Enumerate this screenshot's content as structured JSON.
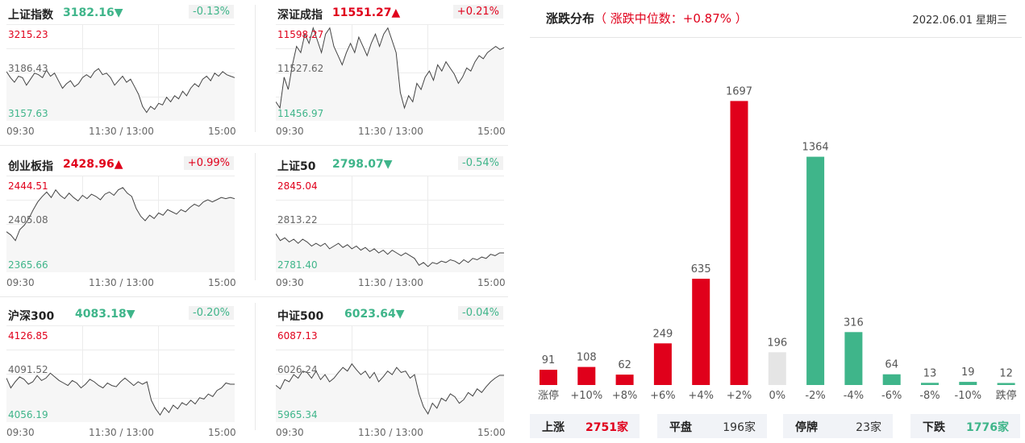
{
  "indices": [
    {
      "name": "上证指数",
      "value": "3182.16",
      "arrow": "▼",
      "change": "-0.13%",
      "trend": "down",
      "ymax": "3215.23",
      "ymid": "3186.43",
      "ymin": "3157.63",
      "series": [
        3187.0,
        3183.0,
        3180.0,
        3184.0,
        3183.0,
        3178.0,
        3182.0,
        3186.0,
        3185.0,
        3183.0,
        3188.0,
        3184.0,
        3186.0,
        3181.0,
        3176.0,
        3179.0,
        3181.0,
        3177.0,
        3179.0,
        3183.0,
        3185.0,
        3183.0,
        3187.0,
        3189.0,
        3185.0,
        3186.0,
        3183.0,
        3178.0,
        3181.0,
        3184.0,
        3180.0,
        3182.0,
        3177.0,
        3172.0,
        3164.0,
        3160.0,
        3164.0,
        3162.0,
        3166.0,
        3165.0,
        3170.0,
        3167.0,
        3171.0,
        3169.0,
        3174.0,
        3171.0,
        3176.0,
        3179.0,
        3177.0,
        3182.0,
        3184.0,
        3181.0,
        3186.0,
        3184.0,
        3187.0,
        3185.0,
        3184.0,
        3183.0
      ]
    },
    {
      "name": "深证成指",
      "value": "11551.27",
      "arrow": "▲",
      "change": "+0.21%",
      "trend": "up",
      "ymax": "11598.27",
      "ymid": "11527.62",
      "ymin": "11456.97",
      "series": [
        11480,
        11470,
        11520,
        11500,
        11540,
        11570,
        11560,
        11590,
        11575,
        11600,
        11580,
        11560,
        11590,
        11600,
        11570,
        11555,
        11540,
        11560,
        11575,
        11560,
        11585,
        11570,
        11555,
        11575,
        11590,
        11570,
        11590,
        11600,
        11580,
        11560,
        11495,
        11470,
        11490,
        11480,
        11510,
        11500,
        11520,
        11530,
        11515,
        11540,
        11530,
        11545,
        11535,
        11525,
        11510,
        11520,
        11535,
        11530,
        11545,
        11555,
        11550,
        11560,
        11565,
        11570,
        11565,
        11568
      ]
    },
    {
      "name": "创业板指",
      "value": "2428.96",
      "arrow": "▲",
      "change": "+0.99%",
      "trend": "up",
      "ymax": "2444.51",
      "ymid": "2405.08",
      "ymin": "2365.66",
      "series": [
        2398,
        2395,
        2390,
        2400,
        2404,
        2410,
        2418,
        2425,
        2430,
        2434,
        2429,
        2436,
        2431,
        2428,
        2433,
        2429,
        2426,
        2431,
        2428,
        2432,
        2430,
        2427,
        2432,
        2434,
        2431,
        2436,
        2438,
        2433,
        2430,
        2419,
        2412,
        2408,
        2413,
        2410,
        2415,
        2413,
        2418,
        2416,
        2414,
        2418,
        2416,
        2420,
        2423,
        2421,
        2425,
        2427,
        2425,
        2427,
        2429,
        2428,
        2429,
        2428
      ]
    },
    {
      "name": "上证50",
      "value": "2798.07",
      "arrow": "▼",
      "change": "-0.54%",
      "trend": "down",
      "ymax": "2845.04",
      "ymid": "2813.22",
      "ymin": "2781.40",
      "series": [
        2806,
        2801,
        2803,
        2800,
        2802,
        2799,
        2802,
        2800,
        2797,
        2799,
        2797,
        2799,
        2795,
        2797,
        2799,
        2796,
        2798,
        2795,
        2797,
        2794,
        2796,
        2793,
        2795,
        2792,
        2794,
        2791,
        2794,
        2792,
        2790,
        2792,
        2790,
        2788,
        2783,
        2785,
        2782,
        2785,
        2784,
        2786,
        2785,
        2787,
        2786,
        2784,
        2787,
        2785,
        2788,
        2787,
        2789,
        2788,
        2791,
        2790,
        2792,
        2792
      ]
    },
    {
      "name": "沪深300",
      "value": "4083.18",
      "arrow": "▼",
      "change": "-0.20%",
      "trend": "down",
      "ymax": "4126.85",
      "ymid": "4091.52",
      "ymin": "4056.19",
      "series": [
        4088,
        4080,
        4085,
        4089,
        4087,
        4083,
        4085,
        4090,
        4086,
        4088,
        4092,
        4089,
        4086,
        4084,
        4082,
        4086,
        4084,
        4080,
        4083,
        4087,
        4085,
        4082,
        4080,
        4084,
        4082,
        4081,
        4085,
        4088,
        4085,
        4082,
        4085,
        4083,
        4085,
        4070,
        4063,
        4058,
        4064,
        4060,
        4066,
        4063,
        4068,
        4066,
        4070,
        4067,
        4072,
        4071,
        4075,
        4073,
        4078,
        4080,
        4084,
        4083,
        4083
      ]
    },
    {
      "name": "中证500",
      "value": "6023.64",
      "arrow": "▼",
      "change": "-0.04%",
      "trend": "down",
      "ymax": "6087.13",
      "ymid": "6026.24",
      "ymin": "5965.34",
      "series": [
        6010,
        6005,
        6018,
        6015,
        6025,
        6020,
        6030,
        6028,
        6020,
        6030,
        6018,
        6025,
        6015,
        6020,
        6028,
        6035,
        6030,
        6040,
        6032,
        6025,
        6030,
        6020,
        6028,
        6015,
        6022,
        6030,
        6025,
        6035,
        6028,
        6030,
        6020,
        6025,
        5998,
        5980,
        5970,
        5985,
        5978,
        5992,
        5988,
        5998,
        5994,
        5985,
        5990,
        6000,
        5995,
        6005,
        6000,
        6008,
        6015,
        6020,
        6024,
        6024
      ]
    }
  ],
  "time_labels": {
    "start": "09:30",
    "mid": "11:30 / 13:00",
    "end": "15:00"
  },
  "dist": {
    "title": "涨跌分布",
    "median_text": "（ 涨跌中位数：+0.87% ）",
    "date": "2022.06.01 星期三"
  },
  "chart_data": {
    "type": "bar",
    "categories": [
      "涨停",
      "+10%",
      "+8%",
      "+6%",
      "+4%",
      "+2%",
      "0%",
      "-2%",
      "-4%",
      "-6%",
      "-8%",
      "-10%",
      "跌停"
    ],
    "values": [
      91,
      108,
      62,
      249,
      635,
      1697,
      196,
      1364,
      316,
      64,
      13,
      19,
      12
    ],
    "ylim": [
      0,
      1800
    ]
  },
  "stats": [
    {
      "label": "上涨",
      "value": "2751家",
      "color": "#e0001b"
    },
    {
      "label": "平盘",
      "value": "196家",
      "color": "#333333"
    },
    {
      "label": "停牌",
      "value": "23家",
      "color": "#333333"
    },
    {
      "label": "下跌",
      "value": "1776家",
      "color": "#3fb58a"
    }
  ],
  "colors": {
    "up": "#e0001b",
    "down": "#3fb58a",
    "flat": "#e5e5e5"
  }
}
